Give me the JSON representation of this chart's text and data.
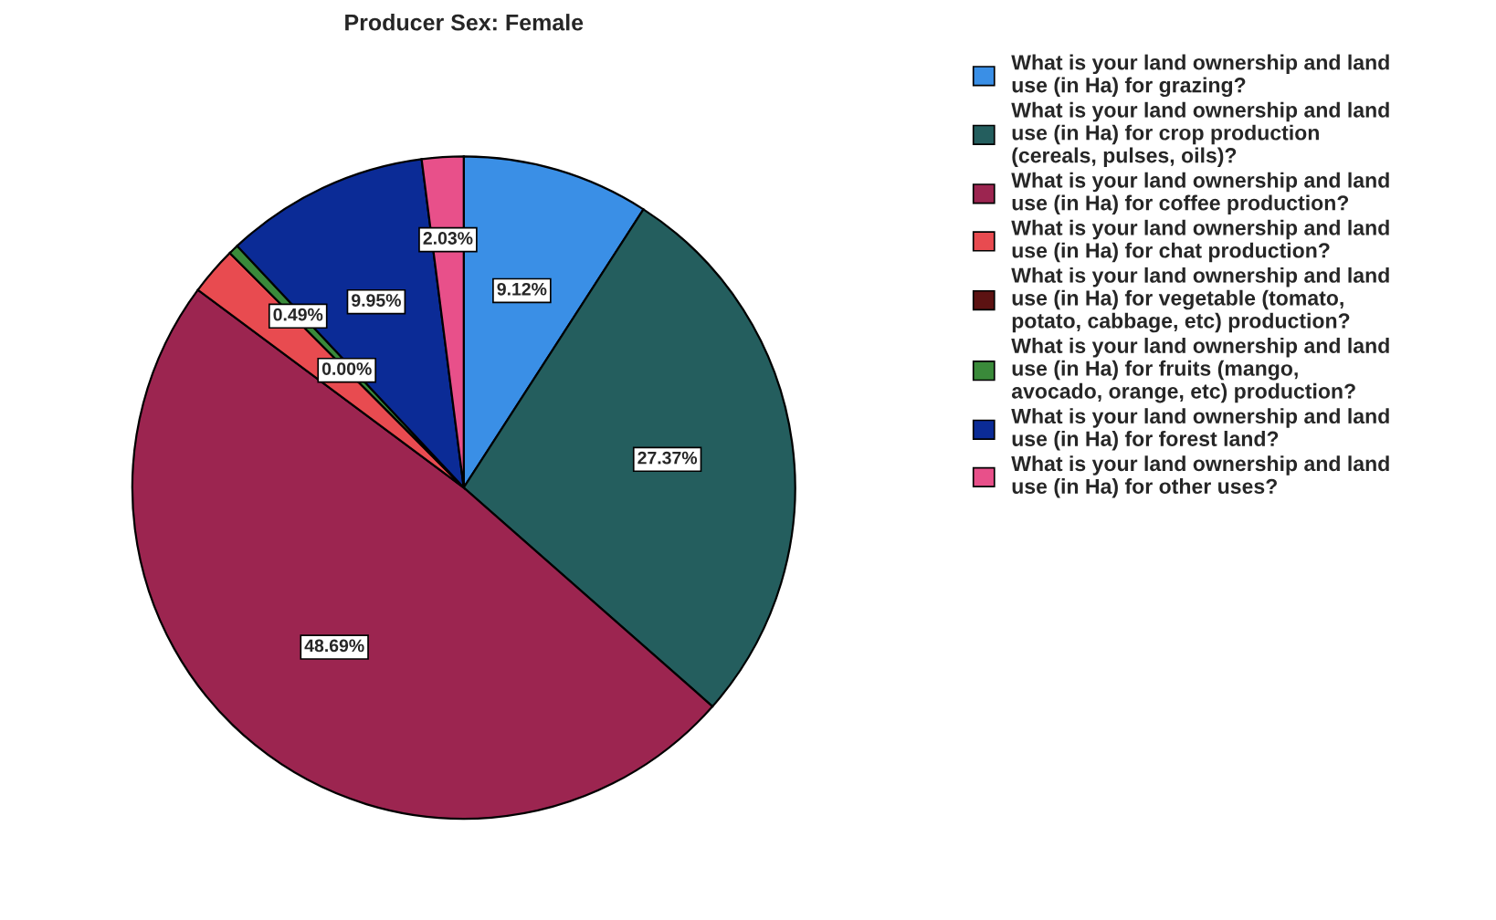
{
  "chart_data": {
    "type": "pie",
    "title": "Producer Sex: Female",
    "categories": [
      "What is your land ownership and land use (in Ha) for grazing?",
      "What is your land ownership and land use (in Ha) for crop production (cereals, pulses, oils)?",
      "What is your land ownership and land use (in Ha) for coffee production?",
      "What is your land ownership and land use (in Ha) for chat production?",
      "What is your land ownership and land use (in Ha) for vegetable (tomato, potato, cabbage, etc) production?",
      "What is your land ownership and land use (in Ha) for fruits (mango, avocado, orange, etc) production?",
      "What is your land ownership and land use (in Ha) for forest land?",
      "What is your land ownership and land use (in Ha) for other uses?"
    ],
    "values": [
      9.12,
      27.37,
      48.69,
      2.35,
      0.0,
      0.49,
      9.95,
      2.03
    ],
    "value_labels": [
      "9.12%",
      "27.37%",
      "48.69%",
      null,
      "0.00%",
      "0.49%",
      "9.95%",
      "2.03%"
    ],
    "colors": [
      "#3a8fe6",
      "#245e5e",
      "#9c2550",
      "#e84b50",
      "#5c1212",
      "#3a8a3a",
      "#0b2b96",
      "#e8508a"
    ],
    "legend": "right"
  }
}
